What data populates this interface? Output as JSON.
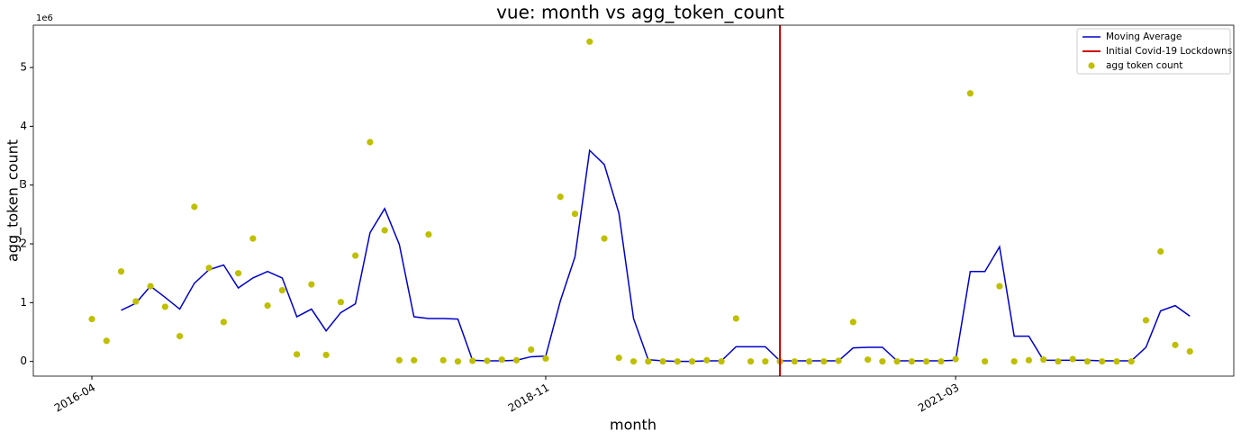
{
  "chart_data": {
    "type": "line",
    "title": "vue: month vs agg_token_count",
    "xlabel": "month",
    "ylabel": "agg_token_count",
    "y_offset_label": "1e6",
    "x": [
      "2016-04",
      "2016-05",
      "2016-06",
      "2016-07",
      "2016-08",
      "2016-09",
      "2016-10",
      "2016-11",
      "2016-12",
      "2017-01",
      "2017-02",
      "2017-03",
      "2017-04",
      "2017-05",
      "2017-06",
      "2017-07",
      "2017-08",
      "2017-09",
      "2017-10",
      "2017-11",
      "2017-12",
      "2018-01",
      "2018-02",
      "2018-03",
      "2018-04",
      "2018-05",
      "2018-06",
      "2018-07",
      "2018-08",
      "2018-09",
      "2018-10",
      "2018-11",
      "2018-12",
      "2019-01",
      "2019-02",
      "2019-03",
      "2019-04",
      "2019-05",
      "2019-06",
      "2019-07",
      "2019-08",
      "2019-09",
      "2019-10",
      "2019-11",
      "2019-12",
      "2020-01",
      "2020-02",
      "2020-03",
      "2020-04",
      "2020-05",
      "2020-06",
      "2020-07",
      "2020-08",
      "2020-09",
      "2020-10",
      "2020-11",
      "2020-12",
      "2021-01",
      "2021-02",
      "2021-03",
      "2021-04",
      "2021-05",
      "2021-06",
      "2021-07",
      "2021-08",
      "2021-09",
      "2021-10",
      "2021-11",
      "2021-12",
      "2022-01",
      "2022-02",
      "2022-03",
      "2022-04",
      "2022-05",
      "2022-06",
      "2022-07"
    ],
    "series": [
      {
        "name": "Moving Average",
        "type": "line",
        "color": "#0000cc",
        "values": [
          null,
          null,
          0.87,
          0.99,
          1.28,
          1.09,
          0.89,
          1.33,
          1.56,
          1.64,
          1.25,
          1.42,
          1.53,
          1.42,
          0.76,
          0.89,
          0.52,
          0.83,
          0.98,
          2.19,
          2.6,
          1.99,
          0.76,
          0.73,
          0.73,
          0.72,
          0.02,
          0.01,
          0.01,
          0.02,
          0.08,
          0.09,
          1.03,
          1.78,
          3.59,
          3.35,
          2.52,
          0.73,
          0.03,
          0.01,
          0,
          0,
          0.01,
          0.01,
          0.25,
          0.25,
          0.25,
          0.01,
          0.01,
          0.01,
          0.01,
          0.01,
          0.23,
          0.24,
          0.24,
          0.01,
          0.01,
          0.01,
          0.01,
          0.02,
          1.53,
          1.53,
          1.95,
          0.43,
          0.43,
          0.02,
          0.02,
          0.02,
          0.02,
          0.01,
          0.01,
          0.01,
          0.24,
          0.86,
          0.95,
          0.77
        ]
      },
      {
        "name": "agg token count",
        "type": "scatter",
        "color": "#bfbf00",
        "values": [
          0.72,
          0.35,
          1.53,
          1.02,
          1.28,
          0.93,
          0.43,
          2.63,
          1.59,
          0.67,
          1.5,
          2.09,
          0.95,
          1.21,
          0.12,
          1.31,
          0.11,
          1.01,
          1.8,
          3.73,
          2.23,
          0.02,
          0.02,
          2.16,
          0.02,
          0,
          0.01,
          0.01,
          0.03,
          0.02,
          0.2,
          0.05,
          2.8,
          2.51,
          5.44,
          2.09,
          0.06,
          0,
          0,
          0,
          0,
          0,
          0.02,
          0,
          0.73,
          0,
          0,
          0,
          0,
          0,
          0,
          0.01,
          0.67,
          0.03,
          0,
          0,
          0,
          0,
          0,
          0.04,
          4.56,
          0,
          1.28,
          0,
          0.02,
          0.03,
          0,
          0.04,
          0,
          0,
          0,
          0,
          0.7,
          1.87,
          0.28,
          0.17
        ]
      }
    ],
    "vlines": [
      {
        "x": "2020-03",
        "name": "Initial Covid-19 Lockdowns",
        "color": "#cc0000"
      }
    ],
    "xlim": [
      "2015-12",
      "2022-10"
    ],
    "xticks": [
      "2016-04",
      "2018-11",
      "2021-03"
    ],
    "ylim": [
      -0.25,
      5.72
    ],
    "yticks": [
      0,
      1,
      2,
      3,
      4,
      5
    ],
    "legend": "upper right",
    "grid": false
  }
}
